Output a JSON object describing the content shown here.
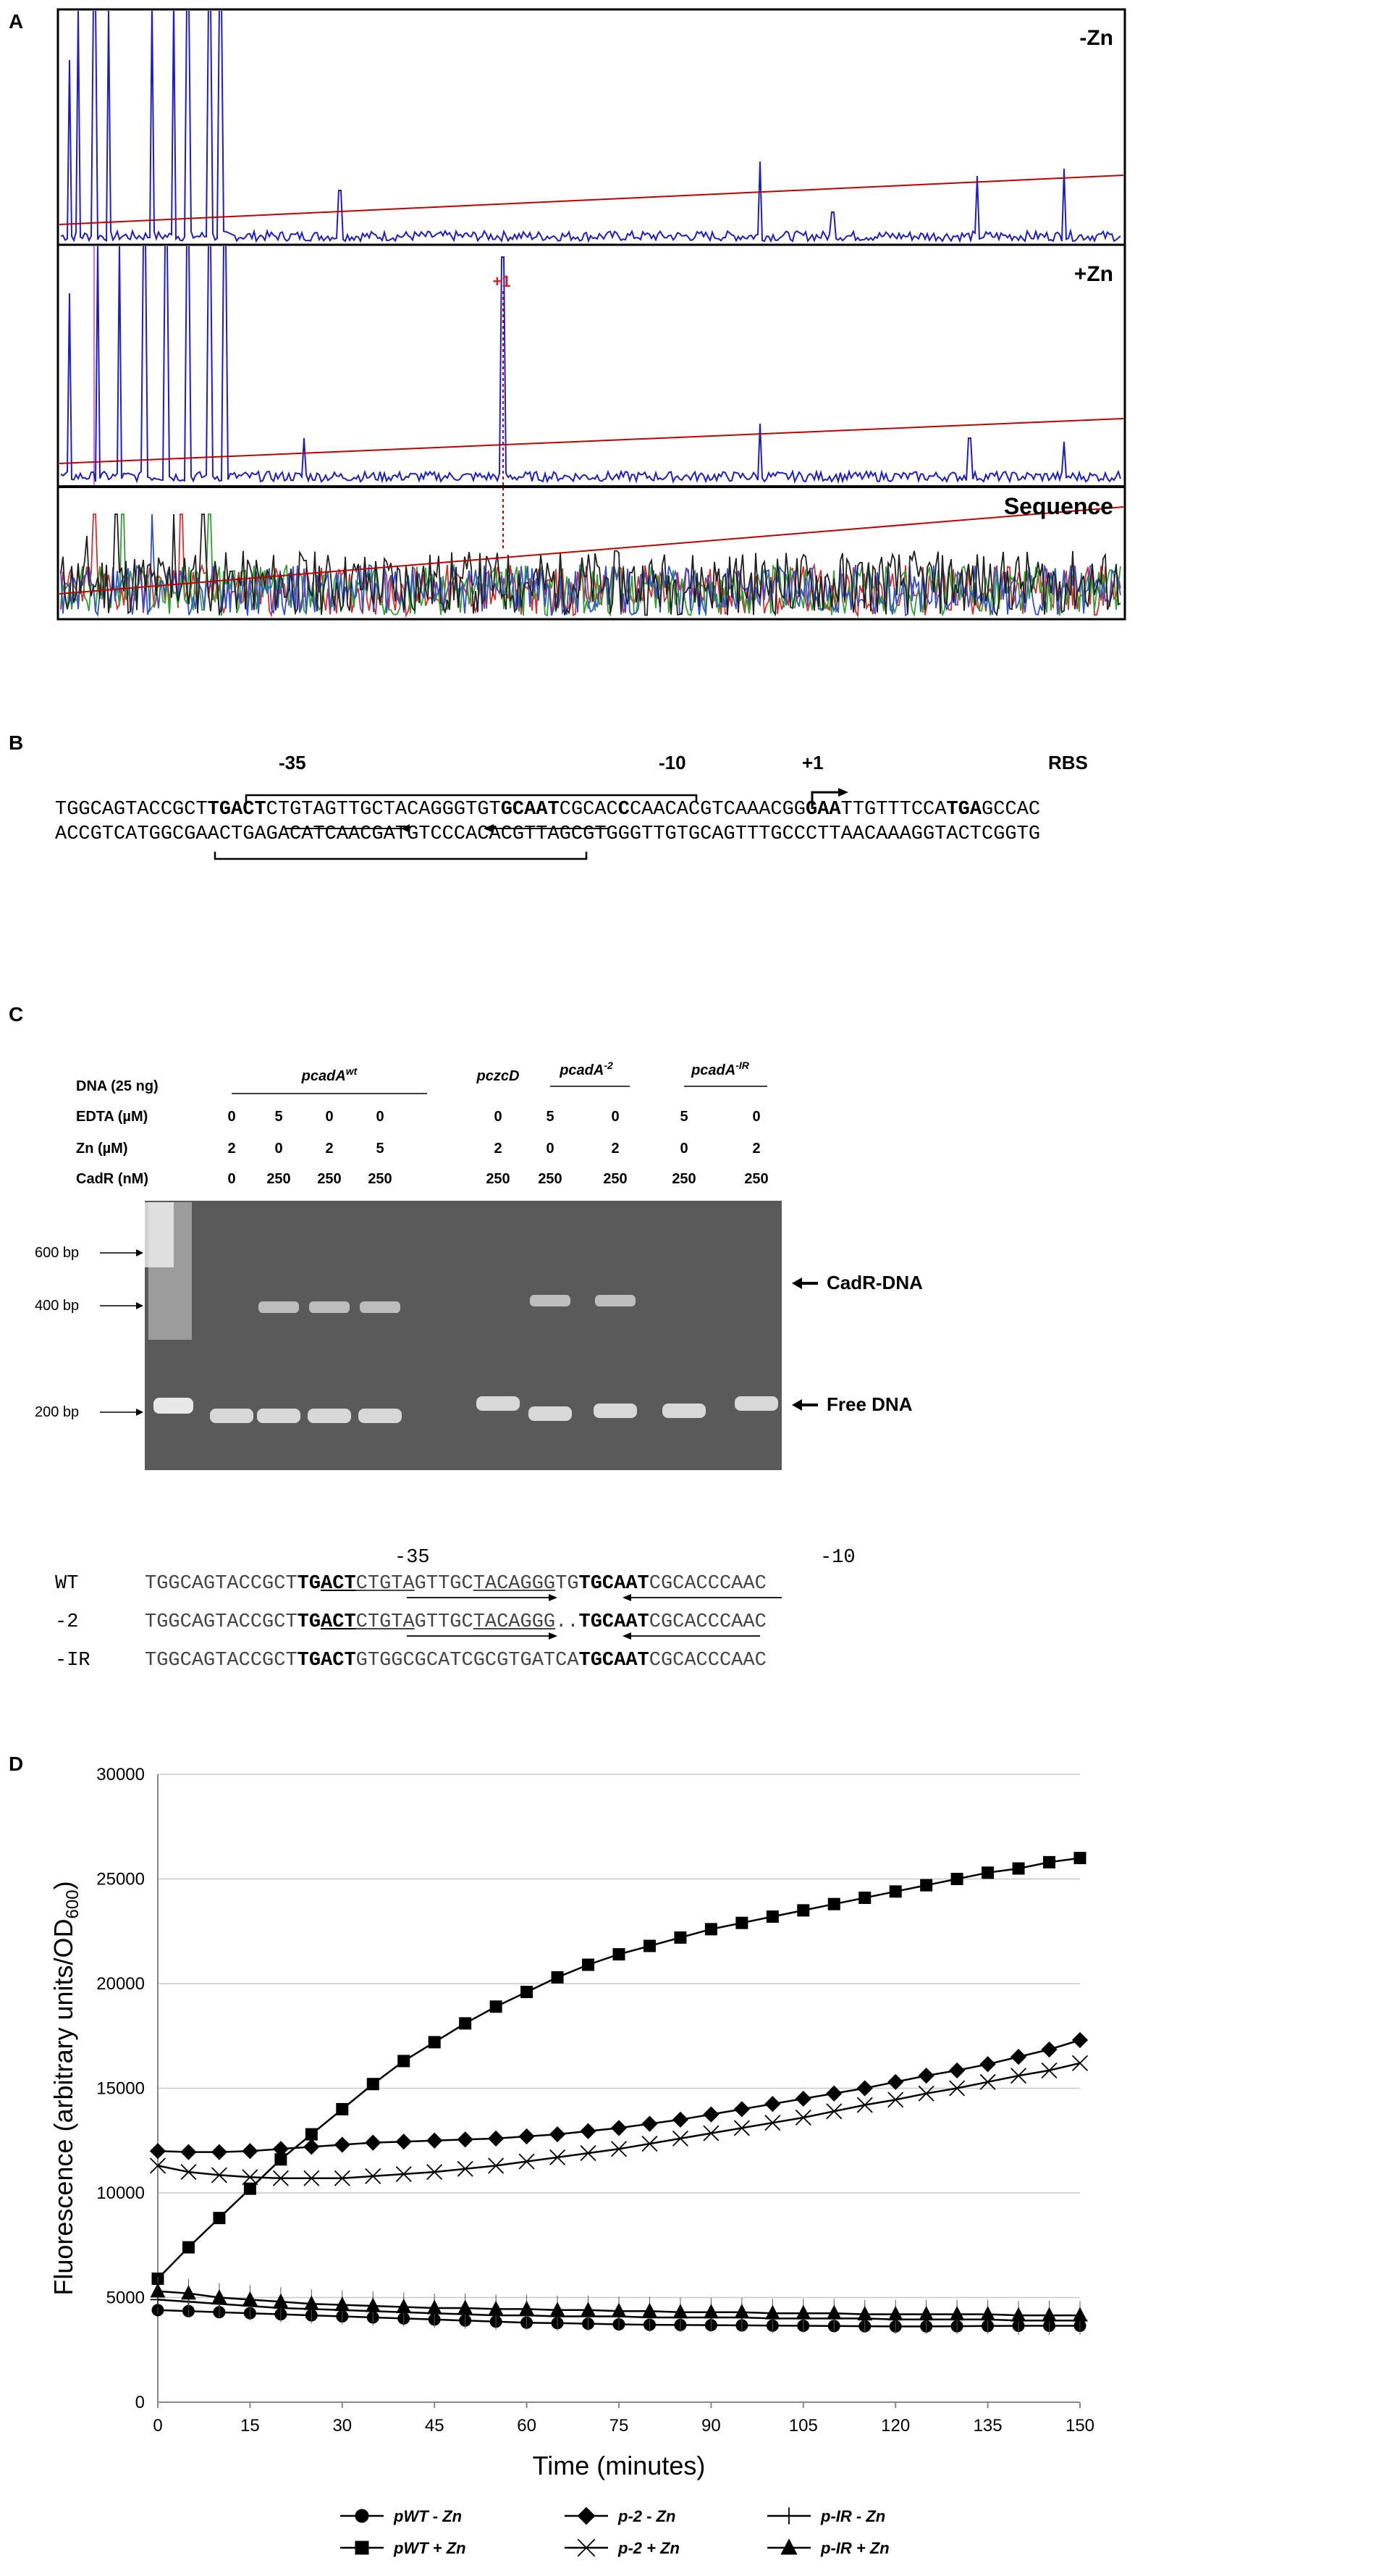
{
  "panels": {
    "a": "A",
    "b": "B",
    "c": "C",
    "d": "D"
  },
  "panel_a": {
    "minus_zn": "-Zn",
    "plus_zn": "+Zn",
    "plus_one": "+1",
    "sequence": "Sequence"
  },
  "panel_b": {
    "minus35": "-35",
    "minus10": "-10",
    "plus1": "+1",
    "rbs": "RBS",
    "top_strand": "TGGCAGTACCGCTTGACTCTGTAGTTGCTACAGGGTGTGCAATCGCACCCAACACGTCAAACGGGAATTGTTTCCATGAGCCAC",
    "bottom_strand": "ACCGTCATGGCGAACTGAGACATCAACGATGTCCCACACGTTAGCGTGGGTTGTGCAGTTTGCCCTTAACAAAGGTACTCGGTG"
  },
  "panel_c": {
    "row_labels": [
      "DNA (25 ng)",
      "EDTA (µM)",
      "Zn (µM)",
      "CadR (nM)"
    ],
    "groups": [
      "pcadA",
      "pczcD",
      "pcadA",
      "pcadA"
    ],
    "group_sups": [
      "wt",
      "",
      "-2",
      "-IR"
    ],
    "edta": [
      "0",
      "5",
      "0",
      "0",
      "0",
      "5",
      "0",
      "5",
      "0"
    ],
    "zn": [
      "2",
      "0",
      "2",
      "5",
      "2",
      "0",
      "2",
      "0",
      "2"
    ],
    "cadr": [
      "0",
      "250",
      "250",
      "250",
      "250",
      "250",
      "250",
      "250",
      "250"
    ],
    "markers": [
      "600 bp",
      "400 bp",
      "200 bp"
    ],
    "bands": [
      "CadR-DNA",
      "Free DNA"
    ],
    "align_minus35": "-35",
    "align_minus10": "-10",
    "align_names": [
      "WT",
      "-2",
      "-IR"
    ],
    "align_seqs": [
      "TGGCAGTACCGCTTGACTCTGTAGTTGCTACAGGGTGTGCAATCGCACCCAAC",
      "TGGCAGTACCGCTTGACTCTGTAGTTGCTACAGGG..TGCAATCGCACCCAAC",
      "TGGCAGTACCGCTTGACTGTGGCGCATCGCGTGATCATGCAATCGCACCCAAC"
    ]
  },
  "chart_data": {
    "type": "line",
    "title": "",
    "xlabel": "Time (minutes)",
    "ylabel": "Fluorescence (arbitrary units/OD",
    "ylabel_sub": "600",
    "ylabel_end": ")",
    "xlim": [
      0,
      150
    ],
    "ylim": [
      0,
      30000
    ],
    "xticks": [
      "0",
      "15",
      "30",
      "45",
      "60",
      "75",
      "90",
      "105",
      "120",
      "135",
      "150"
    ],
    "yticks": [
      "0",
      "5000",
      "10000",
      "15000",
      "20000",
      "25000",
      "30000"
    ],
    "grid": "horizontal",
    "legend_position": "bottom",
    "x": [
      0,
      5,
      10,
      15,
      20,
      25,
      30,
      35,
      40,
      45,
      50,
      55,
      60,
      65,
      70,
      75,
      80,
      85,
      90,
      95,
      100,
      105,
      110,
      115,
      120,
      125,
      130,
      135,
      140,
      145,
      150
    ],
    "series": [
      {
        "name": "pWT - Zn",
        "marker": "circle",
        "values": [
          4400,
          4350,
          4300,
          4250,
          4200,
          4150,
          4100,
          4050,
          4000,
          3950,
          3900,
          3850,
          3800,
          3780,
          3750,
          3720,
          3700,
          3690,
          3680,
          3670,
          3660,
          3650,
          3640,
          3630,
          3620,
          3620,
          3630,
          3640,
          3650,
          3650,
          3650
        ]
      },
      {
        "name": "pWT + Zn",
        "marker": "square",
        "values": [
          5900,
          7400,
          8800,
          10200,
          11600,
          12800,
          14000,
          15200,
          16300,
          17200,
          18100,
          18900,
          19600,
          20300,
          20900,
          21400,
          21800,
          22200,
          22600,
          22900,
          23200,
          23500,
          23800,
          24100,
          24400,
          24700,
          25000,
          25300,
          25500,
          25800,
          26000
        ]
      },
      {
        "name": "p-2 - Zn",
        "marker": "diamond",
        "values": [
          12000,
          11950,
          11950,
          12000,
          12100,
          12200,
          12300,
          12400,
          12450,
          12500,
          12550,
          12600,
          12700,
          12800,
          12950,
          13100,
          13300,
          13500,
          13750,
          14000,
          14250,
          14500,
          14750,
          15000,
          15300,
          15600,
          15850,
          16150,
          16500,
          16850,
          17300
        ]
      },
      {
        "name": "p-2 + Zn",
        "marker": "cross",
        "values": [
          11300,
          11000,
          10850,
          10750,
          10700,
          10700,
          10700,
          10800,
          10900,
          11000,
          11150,
          11300,
          11500,
          11700,
          11900,
          12100,
          12350,
          12600,
          12850,
          13100,
          13350,
          13600,
          13900,
          14200,
          14450,
          14750,
          15000,
          15300,
          15600,
          15850,
          16200
        ]
      },
      {
        "name": "p-IR - Zn",
        "marker": "plus",
        "values": [
          4900,
          4800,
          4700,
          4600,
          4500,
          4450,
          4400,
          4350,
          4300,
          4250,
          4200,
          4150,
          4150,
          4100,
          4100,
          4100,
          4050,
          4050,
          4050,
          4050,
          4000,
          4000,
          4000,
          4000,
          3950,
          3950,
          3950,
          3950,
          3900,
          3900,
          3900
        ]
      },
      {
        "name": "p-IR + Zn",
        "marker": "triangle",
        "values": [
          5300,
          5200,
          5000,
          4900,
          4800,
          4700,
          4650,
          4600,
          4550,
          4500,
          4500,
          4450,
          4450,
          4400,
          4400,
          4350,
          4350,
          4300,
          4300,
          4300,
          4250,
          4250,
          4250,
          4200,
          4200,
          4200,
          4200,
          4200,
          4150,
          4150,
          4150
        ]
      }
    ]
  }
}
